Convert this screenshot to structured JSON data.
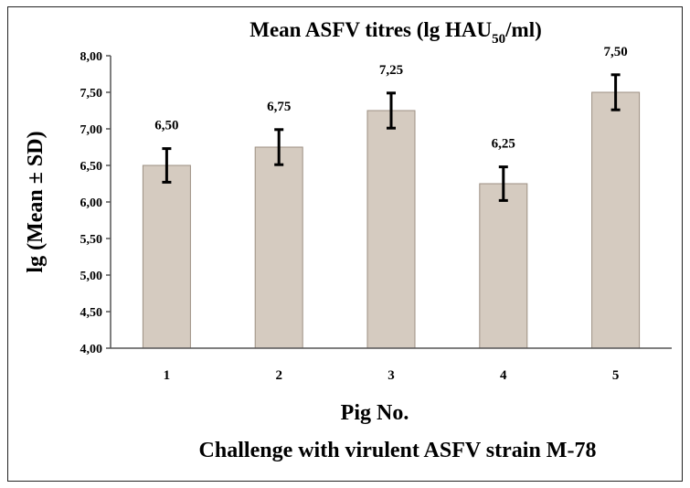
{
  "chart_data": {
    "type": "bar",
    "title": "Mean ASFV titres (lg HAU",
    "title_subscript": "50",
    "title_suffix": "/ml)",
    "xlabel": "Pig No.",
    "ylabel": "lg (Mean ± SD)",
    "caption": "Challenge with virulent ASFV strain M-78",
    "categories": [
      "1",
      "2",
      "3",
      "4",
      "5"
    ],
    "values": [
      6.5,
      6.75,
      7.25,
      6.25,
      7.5
    ],
    "value_labels": [
      "6,50",
      "6,75",
      "7,25",
      "6,25",
      "7,50"
    ],
    "error": [
      0.23,
      0.24,
      0.24,
      0.23,
      0.24
    ],
    "ylim": [
      4.0,
      8.0
    ],
    "yticks": [
      4.0,
      4.5,
      5.0,
      5.5,
      6.0,
      6.5,
      7.0,
      7.5,
      8.0
    ],
    "ytick_labels": [
      "4,00",
      "4,50",
      "5,00",
      "5,50",
      "6,00",
      "6,50",
      "7,00",
      "7,50",
      "8,00"
    ],
    "bar_color": "#d5cbc0",
    "bar_edge_color": "#9c8f82",
    "grid": false,
    "legend": false
  }
}
